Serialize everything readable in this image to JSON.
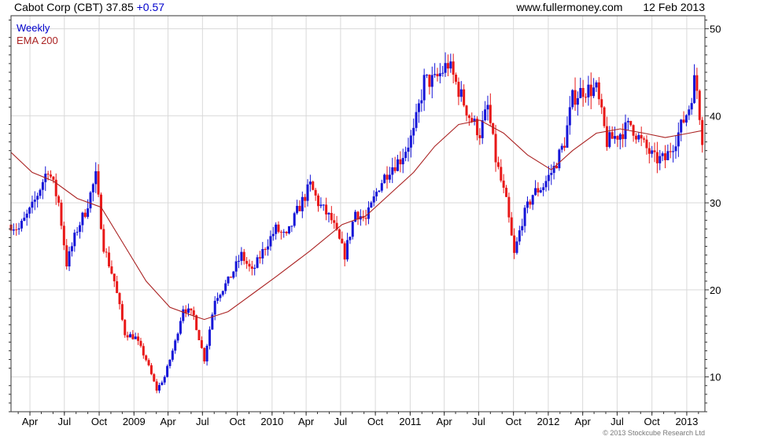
{
  "header": {
    "title": "Cabot Corp (CBT) 37.85",
    "change": "+0.57",
    "site": "www.fullermoney.com",
    "date": "12 Feb 2013"
  },
  "legend": {
    "weekly": "Weekly",
    "ema": "EMA 200"
  },
  "copyright": "© 2013 Stockcube Research Ltd",
  "colors": {
    "up": "#1515d8",
    "down": "#e81818",
    "ema": "#aa2222",
    "grid": "#d9d9d9",
    "frame": "#333333"
  },
  "chart_data": {
    "type": "candlestick",
    "title": "Cabot Corp (CBT) 37.85 +0.57",
    "y_ticks": [
      10,
      20,
      30,
      40,
      50
    ],
    "ylim": [
      6.0,
      51.5
    ],
    "x_tick_labels": [
      "Apr",
      "Jul",
      "Oct",
      "2009",
      "Apr",
      "Jul",
      "Oct",
      "2010",
      "Apr",
      "Jul",
      "Oct",
      "2011",
      "Apr",
      "Jul",
      "Oct",
      "2012",
      "Apr",
      "Jul",
      "Oct",
      "2013"
    ],
    "x_ticks": [
      "2008-04-01",
      "2008-07-01",
      "2008-10-01",
      "2009-01-01",
      "2009-04-01",
      "2009-07-01",
      "2009-10-01",
      "2010-01-01",
      "2010-04-01",
      "2010-07-01",
      "2010-10-01",
      "2011-01-01",
      "2011-04-01",
      "2011-07-01",
      "2011-10-01",
      "2012-01-01",
      "2012-04-01",
      "2012-07-01",
      "2012-10-01",
      "2013-01-01"
    ],
    "xlim": [
      "2008-02-11",
      "2013-02-18"
    ],
    "price_key": [
      [
        "2008-02-11",
        27.5
      ],
      [
        "2008-03-03",
        27
      ],
      [
        "2008-04-07",
        29.5
      ],
      [
        "2008-05-19",
        34
      ],
      [
        "2008-06-16",
        30
      ],
      [
        "2008-07-07",
        23
      ],
      [
        "2008-08-04",
        27
      ],
      [
        "2008-08-25",
        29
      ],
      [
        "2008-09-22",
        33
      ],
      [
        "2008-10-13",
        25
      ],
      [
        "2008-11-10",
        21
      ],
      [
        "2008-12-08",
        15
      ],
      [
        "2009-01-05",
        14.5
      ],
      [
        "2009-02-02",
        12
      ],
      [
        "2009-03-02",
        8.5
      ],
      [
        "2009-03-23",
        10
      ],
      [
        "2009-04-20",
        14
      ],
      [
        "2009-05-11",
        18
      ],
      [
        "2009-06-08",
        17
      ],
      [
        "2009-07-06",
        12
      ],
      [
        "2009-08-03",
        19
      ],
      [
        "2009-09-07",
        21
      ],
      [
        "2009-10-12",
        24
      ],
      [
        "2009-11-09",
        22
      ],
      [
        "2009-12-14",
        25
      ],
      [
        "2010-01-11",
        27
      ],
      [
        "2010-02-08",
        26
      ],
      [
        "2010-03-08",
        29
      ],
      [
        "2010-04-12",
        32
      ],
      [
        "2010-05-03",
        30
      ],
      [
        "2010-06-07",
        28
      ],
      [
        "2010-07-12",
        24
      ],
      [
        "2010-08-09",
        29
      ],
      [
        "2010-09-06",
        28
      ],
      [
        "2010-10-11",
        32
      ],
      [
        "2010-11-08",
        34
      ],
      [
        "2010-12-06",
        35
      ],
      [
        "2011-01-10",
        38
      ],
      [
        "2011-02-07",
        44
      ],
      [
        "2011-03-07",
        44
      ],
      [
        "2011-04-11",
        46
      ],
      [
        "2011-05-09",
        43
      ],
      [
        "2011-06-06",
        40
      ],
      [
        "2011-07-04",
        38
      ],
      [
        "2011-07-25",
        41
      ],
      [
        "2011-08-15",
        35
      ],
      [
        "2011-09-12",
        30
      ],
      [
        "2011-10-03",
        24
      ],
      [
        "2011-10-24",
        28
      ],
      [
        "2011-11-21",
        31
      ],
      [
        "2011-12-19",
        32
      ],
      [
        "2012-01-16",
        34
      ],
      [
        "2012-02-13",
        37
      ],
      [
        "2012-03-05",
        42
      ],
      [
        "2012-04-02",
        43
      ],
      [
        "2012-05-07",
        43
      ],
      [
        "2012-06-04",
        37
      ],
      [
        "2012-07-09",
        38
      ],
      [
        "2012-08-06",
        39
      ],
      [
        "2012-09-03",
        37
      ],
      [
        "2012-10-08",
        35
      ],
      [
        "2012-11-05",
        35
      ],
      [
        "2012-12-10",
        38
      ],
      [
        "2013-01-07",
        41
      ],
      [
        "2013-01-21",
        44
      ],
      [
        "2013-01-28",
        43
      ],
      [
        "2013-02-11",
        37.5
      ]
    ],
    "ema_key": [
      [
        "2008-02-11",
        35.8
      ],
      [
        "2008-04-07",
        33.5
      ],
      [
        "2008-06-02",
        32.5
      ],
      [
        "2008-08-04",
        30.5
      ],
      [
        "2008-10-06",
        29.5
      ],
      [
        "2008-12-08",
        25
      ],
      [
        "2009-02-02",
        21
      ],
      [
        "2009-04-06",
        18
      ],
      [
        "2009-06-08",
        17
      ],
      [
        "2009-07-06",
        16.6
      ],
      [
        "2009-09-07",
        17.5
      ],
      [
        "2009-11-09",
        19.5
      ],
      [
        "2010-01-11",
        21.5
      ],
      [
        "2010-04-12",
        24.5
      ],
      [
        "2010-07-05",
        27.5
      ],
      [
        "2010-09-06",
        28.5
      ],
      [
        "2010-11-08",
        31
      ],
      [
        "2011-01-10",
        33.5
      ],
      [
        "2011-03-07",
        36.5
      ],
      [
        "2011-05-09",
        39
      ],
      [
        "2011-07-04",
        39.5
      ],
      [
        "2011-09-05",
        38
      ],
      [
        "2011-11-07",
        35.5
      ],
      [
        "2012-01-09",
        33.8
      ],
      [
        "2012-03-05",
        36
      ],
      [
        "2012-05-07",
        38
      ],
      [
        "2012-07-09",
        38.5
      ],
      [
        "2012-09-10",
        38
      ],
      [
        "2012-11-05",
        37.5
      ],
      [
        "2013-01-07",
        38
      ],
      [
        "2013-02-11",
        38.3
      ]
    ]
  }
}
